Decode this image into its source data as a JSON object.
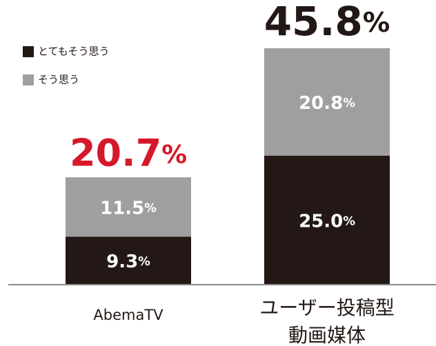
{
  "chart_data": {
    "type": "stacked_bar",
    "categories": [
      "AbemaTV",
      "ユーザー投稿型\n動画媒体"
    ],
    "series": [
      {
        "name": "とてもそう思う",
        "color": "#231815",
        "values": [
          9.3,
          25.0
        ],
        "value_labels": [
          "9.3%",
          "25.0%"
        ]
      },
      {
        "name": "そう思う",
        "color": "#9f9f9f",
        "values": [
          11.5,
          20.8
        ],
        "value_labels": [
          "11.5%",
          "20.8%"
        ]
      }
    ],
    "totals": [
      20.7,
      45.8
    ],
    "total_labels": [
      "20.7%",
      "45.8%"
    ],
    "total_colors": [
      "#d7182a",
      "#231815"
    ],
    "ylim": [
      0,
      50
    ],
    "legend": "top-left"
  }
}
